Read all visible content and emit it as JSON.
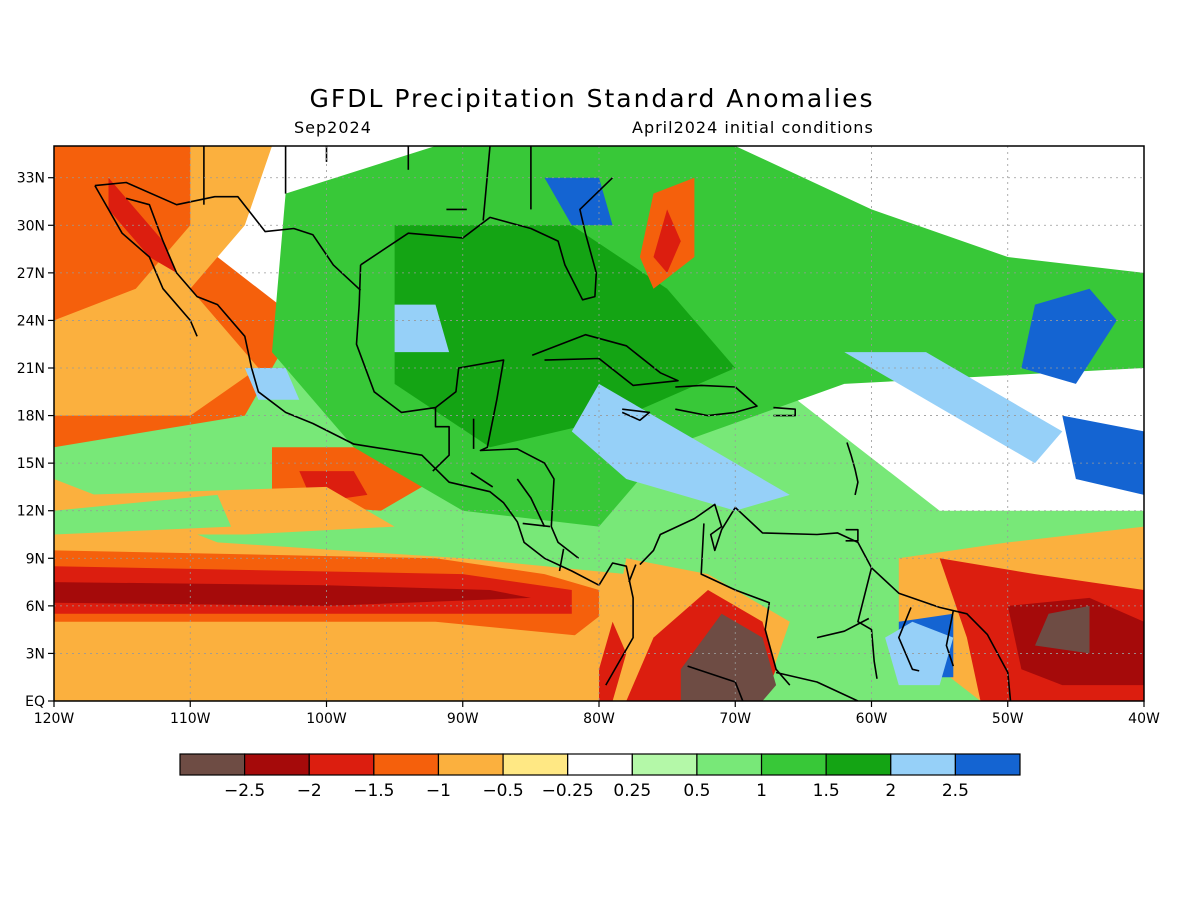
{
  "title": "GFDL Precipitation Standard Anomalies",
  "subtitle_left": "Sep2024",
  "subtitle_right": "April2024 initial conditions",
  "map": {
    "lon_range": [
      -120,
      -40
    ],
    "lat_range": [
      0,
      35
    ],
    "lon_ticks": [
      {
        "value": -120,
        "label": "120W"
      },
      {
        "value": -110,
        "label": "110W"
      },
      {
        "value": -100,
        "label": "100W"
      },
      {
        "value": -90,
        "label": "90W"
      },
      {
        "value": -80,
        "label": "80W"
      },
      {
        "value": -70,
        "label": "70W"
      },
      {
        "value": -60,
        "label": "60W"
      },
      {
        "value": -50,
        "label": "50W"
      },
      {
        "value": -40,
        "label": "40W"
      }
    ],
    "lat_ticks": [
      {
        "value": 0,
        "label": "EQ"
      },
      {
        "value": 3,
        "label": "3N"
      },
      {
        "value": 6,
        "label": "6N"
      },
      {
        "value": 9,
        "label": "9N"
      },
      {
        "value": 12,
        "label": "12N"
      },
      {
        "value": 15,
        "label": "15N"
      },
      {
        "value": 18,
        "label": "18N"
      },
      {
        "value": 21,
        "label": "21N"
      },
      {
        "value": 24,
        "label": "24N"
      },
      {
        "value": 27,
        "label": "27N"
      },
      {
        "value": 30,
        "label": "30N"
      },
      {
        "value": 33,
        "label": "33N"
      }
    ],
    "grid": true,
    "regions": [
      {
        "level": 0.25,
        "poly": [
          [
            -120,
            22
          ],
          [
            -70,
            22
          ],
          [
            -55,
            12
          ],
          [
            -40,
            12
          ],
          [
            -40,
            35
          ],
          [
            -120,
            35
          ]
        ]
      },
      {
        "level": -0.75,
        "poly": [
          [
            -120,
            14
          ],
          [
            -108,
            10
          ],
          [
            -90,
            9
          ],
          [
            -78,
            8
          ],
          [
            -78,
            0
          ],
          [
            -120,
            0
          ]
        ]
      },
      {
        "level": -1.25,
        "poly": [
          [
            -120,
            26
          ],
          [
            -108,
            28
          ],
          [
            -102,
            24
          ],
          [
            -106,
            18
          ],
          [
            -120,
            16
          ]
        ]
      },
      {
        "level": -0.75,
        "poly": [
          [
            -120,
            35
          ],
          [
            -104,
            35
          ],
          [
            -106,
            30
          ],
          [
            -110,
            26
          ],
          [
            -105,
            21
          ],
          [
            -110,
            18
          ],
          [
            -120,
            18
          ]
        ]
      },
      {
        "level": -1.25,
        "poly": [
          [
            -120,
            35
          ],
          [
            -110,
            35
          ],
          [
            -110,
            30
          ],
          [
            -114,
            26
          ],
          [
            -120,
            24
          ]
        ]
      },
      {
        "level": -1.75,
        "poly": [
          [
            -116,
            33
          ],
          [
            -112,
            29
          ],
          [
            -111,
            27
          ],
          [
            -113,
            28
          ],
          [
            -116,
            31
          ]
        ]
      },
      {
        "level": -1.25,
        "poly": [
          [
            -120,
            9.5
          ],
          [
            -92,
            9
          ],
          [
            -84,
            8
          ],
          [
            -80,
            7
          ],
          [
            -80,
            4
          ],
          [
            -92,
            5
          ],
          [
            -120,
            5
          ]
        ]
      },
      {
        "level": -1.75,
        "poly": [
          [
            -120,
            8.5
          ],
          [
            -90,
            8
          ],
          [
            -82,
            7
          ],
          [
            -82,
            5.5
          ],
          [
            -100,
            5.5
          ],
          [
            -120,
            5.5
          ]
        ]
      },
      {
        "level": -2.25,
        "poly": [
          [
            -120,
            7.5
          ],
          [
            -100,
            7.3
          ],
          [
            -88,
            7
          ],
          [
            -85,
            6.5
          ],
          [
            -100,
            6
          ],
          [
            -120,
            6.2
          ]
        ]
      },
      {
        "level": -1.25,
        "poly": [
          [
            -104,
            16
          ],
          [
            -96,
            16
          ],
          [
            -92,
            14
          ],
          [
            -96,
            12
          ],
          [
            -104,
            12.5
          ]
        ]
      },
      {
        "level": -1.75,
        "poly": [
          [
            -102,
            14.5
          ],
          [
            -98,
            14.5
          ],
          [
            -97,
            13
          ],
          [
            -101,
            12.5
          ]
        ]
      },
      {
        "level": -0.75,
        "poly": [
          [
            -118,
            13
          ],
          [
            -100,
            13.5
          ],
          [
            -95,
            11
          ],
          [
            -106,
            10.5
          ],
          [
            -118,
            10.5
          ]
        ]
      },
      {
        "level": 0.75,
        "poly": [
          [
            -120,
            12
          ],
          [
            -108,
            13
          ],
          [
            -107,
            11
          ],
          [
            -120,
            10.5
          ]
        ]
      },
      {
        "level": -0.75,
        "poly": [
          [
            -78,
            9
          ],
          [
            -72,
            8
          ],
          [
            -66,
            5
          ],
          [
            -68,
            0
          ],
          [
            -80,
            0
          ]
        ]
      },
      {
        "level": -1.75,
        "poly": [
          [
            -76,
            4
          ],
          [
            -72,
            7
          ],
          [
            -68,
            5
          ],
          [
            -67,
            2
          ],
          [
            -68,
            0
          ],
          [
            -78,
            0
          ]
        ]
      },
      {
        "level": -2.75,
        "poly": [
          [
            -74,
            2
          ],
          [
            -71,
            5.5
          ],
          [
            -68,
            4
          ],
          [
            -67,
            1
          ],
          [
            -68,
            0
          ],
          [
            -74,
            0
          ]
        ]
      },
      {
        "level": -0.75,
        "poly": [
          [
            -80,
            0
          ],
          [
            -78,
            3
          ],
          [
            -79,
            6
          ],
          [
            -82,
            4
          ],
          [
            -82,
            0
          ]
        ]
      },
      {
        "level": -1.75,
        "poly": [
          [
            -79,
            0
          ],
          [
            -78,
            3
          ],
          [
            -79,
            5
          ],
          [
            -80,
            2
          ],
          [
            -80,
            0
          ]
        ]
      },
      {
        "level": -0.75,
        "poly": [
          [
            -58,
            9
          ],
          [
            -50,
            10
          ],
          [
            -40,
            11
          ],
          [
            -40,
            0
          ],
          [
            -52,
            0
          ],
          [
            -55,
            2
          ],
          [
            -58,
            5
          ]
        ]
      },
      {
        "level": -1.75,
        "poly": [
          [
            -55,
            9
          ],
          [
            -48,
            8
          ],
          [
            -40,
            7
          ],
          [
            -40,
            0
          ],
          [
            -52,
            0
          ],
          [
            -53,
            4
          ]
        ]
      },
      {
        "level": -2.25,
        "poly": [
          [
            -50,
            6
          ],
          [
            -44,
            6.5
          ],
          [
            -40,
            5
          ],
          [
            -40,
            1
          ],
          [
            -46,
            1
          ],
          [
            -49,
            2
          ]
        ]
      },
      {
        "level": -2.75,
        "poly": [
          [
            -47,
            5.5
          ],
          [
            -44,
            6
          ],
          [
            -44,
            3
          ],
          [
            -48,
            3.5
          ]
        ]
      },
      {
        "level": 1.25,
        "poly": [
          [
            -103,
            32
          ],
          [
            -92,
            35
          ],
          [
            -70,
            35
          ],
          [
            -60,
            31
          ],
          [
            -50,
            28
          ],
          [
            -40,
            27
          ],
          [
            -40,
            21
          ],
          [
            -62,
            20
          ],
          [
            -75,
            16
          ],
          [
            -80,
            11
          ],
          [
            -90,
            12
          ],
          [
            -98,
            16
          ],
          [
            -104,
            22
          ]
        ]
      },
      {
        "level": 1.75,
        "poly": [
          [
            -95,
            30
          ],
          [
            -82,
            30
          ],
          [
            -75,
            26
          ],
          [
            -70,
            21
          ],
          [
            -78,
            18
          ],
          [
            -88,
            16
          ],
          [
            -95,
            20
          ]
        ]
      },
      {
        "level": 2.25,
        "poly": [
          [
            -80,
            20
          ],
          [
            -72,
            16
          ],
          [
            -66,
            13
          ],
          [
            -70,
            12
          ],
          [
            -78,
            14
          ],
          [
            -82,
            17
          ]
        ]
      },
      {
        "level": 2.25,
        "poly": [
          [
            -62,
            22
          ],
          [
            -54,
            18
          ],
          [
            -48,
            15
          ],
          [
            -46,
            17
          ],
          [
            -56,
            22
          ]
        ]
      },
      {
        "level": 2.75,
        "poly": [
          [
            -48,
            25
          ],
          [
            -44,
            26
          ],
          [
            -42,
            24
          ],
          [
            -45,
            20
          ],
          [
            -49,
            21
          ]
        ]
      },
      {
        "level": 2.75,
        "poly": [
          [
            -46,
            18
          ],
          [
            -40,
            17
          ],
          [
            -40,
            13
          ],
          [
            -45,
            14
          ]
        ]
      },
      {
        "level": 2.75,
        "poly": [
          [
            -84,
            33
          ],
          [
            -80,
            33
          ],
          [
            -79,
            30
          ],
          [
            -82,
            30
          ]
        ]
      },
      {
        "level": 2.25,
        "poly": [
          [
            -95,
            25
          ],
          [
            -92,
            25
          ],
          [
            -91,
            22
          ],
          [
            -95,
            22
          ]
        ]
      },
      {
        "level": 2.25,
        "poly": [
          [
            -106,
            21
          ],
          [
            -103,
            21
          ],
          [
            -102,
            19
          ],
          [
            -105,
            19
          ]
        ]
      },
      {
        "level": 2.75,
        "poly": [
          [
            -58,
            5
          ],
          [
            -54,
            5.5
          ],
          [
            -54,
            1.5
          ],
          [
            -58,
            1.5
          ]
        ]
      },
      {
        "level": 2.25,
        "poly": [
          [
            -59,
            4
          ],
          [
            -57,
            5
          ],
          [
            -54,
            4
          ],
          [
            -55,
            1
          ],
          [
            -58,
            1
          ]
        ]
      },
      {
        "level": -1.25,
        "poly": [
          [
            -76,
            32
          ],
          [
            -73,
            33
          ],
          [
            -73,
            28
          ],
          [
            -76,
            26
          ],
          [
            -77,
            28
          ]
        ]
      },
      {
        "level": -1.75,
        "poly": [
          [
            -75,
            31
          ],
          [
            -74,
            29
          ],
          [
            -75,
            27
          ],
          [
            -76,
            28
          ]
        ]
      }
    ]
  },
  "colorbar": {
    "colors": [
      "#6e4c44",
      "#a50a0a",
      "#dc1e0f",
      "#f5600c",
      "#fbb03e",
      "#ffe884",
      "#ffffff",
      "#b4f8a8",
      "#78e878",
      "#38c838",
      "#14a414",
      "#96d0f8",
      "#1464d2"
    ],
    "labels": [
      "−2.5",
      "−2",
      "−1.5",
      "−1",
      "−0.5",
      "−0.25",
      "0.25",
      "0.5",
      "1",
      "1.5",
      "2",
      "2.5"
    ]
  }
}
